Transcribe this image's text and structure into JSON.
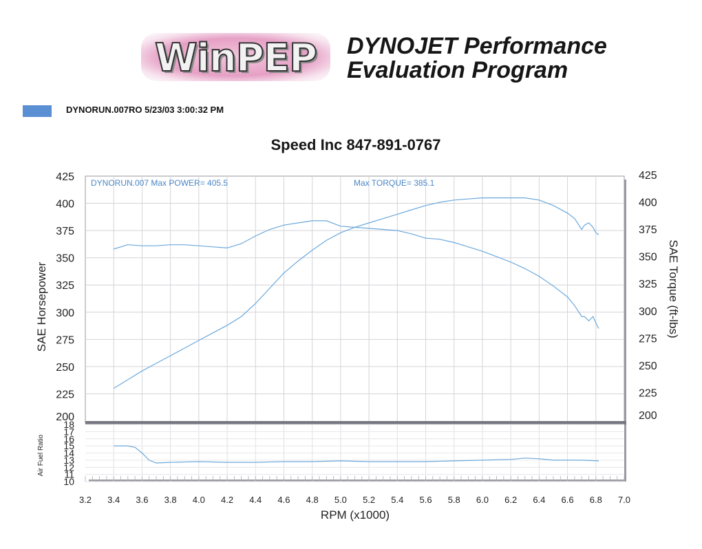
{
  "header": {
    "logo_text": "WinPEP",
    "brand_line1": "DYNOJET Performance",
    "brand_line2": "Evaluation Program"
  },
  "run": {
    "label": "DYNORUN.007RO  5/23/03 3:00:32 PM",
    "color": "#5b8fd4"
  },
  "chart_data": {
    "type": "line",
    "title": "Speed Inc 847-891-0767",
    "xlabel": "RPM (x1000)",
    "xlim": [
      3.2,
      7.0
    ],
    "x_ticks": [
      "3.2",
      "3.4",
      "3.6",
      "3.8",
      "4.0",
      "4.2",
      "4.4",
      "4.6",
      "4.8",
      "5.0",
      "5.2",
      "5.4",
      "5.6",
      "5.8",
      "6.0",
      "6.2",
      "6.4",
      "6.6",
      "6.8",
      "7.0"
    ],
    "ylabel_left": "SAE Horsepower",
    "ylabel_right": "SAE Torque (ft-lbs)",
    "ylim": [
      200,
      425
    ],
    "y_ticks": [
      "200",
      "225",
      "250",
      "275",
      "300",
      "325",
      "350",
      "375",
      "400",
      "425"
    ],
    "grid": true,
    "line_color": "#6aa8dc",
    "annotations": {
      "power": "DYNORUN.007  Max POWER= 405.5",
      "torque": "Max TORQUE= 385.1"
    },
    "series": [
      {
        "axis": "left",
        "x": [
          3.4,
          3.5,
          3.6,
          3.7,
          3.8,
          3.9,
          4.0,
          4.1,
          4.2,
          4.3,
          4.4,
          4.5,
          4.6,
          4.7,
          4.8,
          4.9,
          5.0,
          5.1,
          5.2,
          5.3,
          5.4,
          5.5,
          5.6,
          5.7,
          5.8,
          5.9,
          6.0,
          6.1,
          6.2,
          6.3,
          6.4,
          6.5,
          6.6,
          6.65,
          6.7,
          6.72,
          6.75,
          6.78,
          6.8,
          6.82
        ],
        "y": [
          230,
          238,
          246,
          253,
          260,
          267,
          274,
          281,
          288,
          296,
          308,
          322,
          336,
          347,
          357,
          366,
          373,
          378,
          382,
          386,
          390,
          394,
          398,
          401,
          403,
          404,
          405,
          405,
          405,
          405,
          403,
          398,
          391,
          386,
          376,
          380,
          382,
          378,
          373,
          371
        ]
      },
      {
        "axis": "right",
        "x": [
          3.4,
          3.5,
          3.6,
          3.7,
          3.8,
          3.9,
          4.0,
          4.1,
          4.2,
          4.3,
          4.4,
          4.5,
          4.6,
          4.7,
          4.8,
          4.9,
          5.0,
          5.1,
          5.2,
          5.3,
          5.4,
          5.5,
          5.6,
          5.7,
          5.8,
          5.9,
          6.0,
          6.1,
          6.2,
          6.3,
          6.4,
          6.5,
          6.6,
          6.65,
          6.7,
          6.72,
          6.75,
          6.78,
          6.8,
          6.82
        ],
        "y": [
          358,
          362,
          361,
          361,
          362,
          362,
          361,
          360,
          359,
          363,
          370,
          376,
          380,
          382,
          384,
          384,
          379,
          378,
          377,
          376,
          375,
          372,
          368,
          367,
          364,
          360,
          356,
          351,
          346,
          340,
          333,
          324,
          314,
          306,
          296,
          296,
          292,
          296,
          290,
          285
        ]
      }
    ],
    "afr": {
      "ylabel": "Air Fuel Ratio",
      "ylim": [
        10,
        18
      ],
      "y_ticks": [
        "10",
        "11",
        "12",
        "13",
        "14",
        "15",
        "16",
        "17",
        "18"
      ],
      "series": {
        "x": [
          3.4,
          3.5,
          3.55,
          3.6,
          3.65,
          3.7,
          3.8,
          4.0,
          4.2,
          4.4,
          4.6,
          4.8,
          5.0,
          5.2,
          5.4,
          5.6,
          5.8,
          6.0,
          6.2,
          6.3,
          6.4,
          6.5,
          6.6,
          6.7,
          6.82
        ],
        "y": [
          15.0,
          15.0,
          14.8,
          14.0,
          13.0,
          12.6,
          12.7,
          12.8,
          12.7,
          12.7,
          12.8,
          12.8,
          12.9,
          12.8,
          12.8,
          12.8,
          12.9,
          13.0,
          13.1,
          13.3,
          13.2,
          13.0,
          13.0,
          13.0,
          12.9
        ]
      }
    }
  }
}
